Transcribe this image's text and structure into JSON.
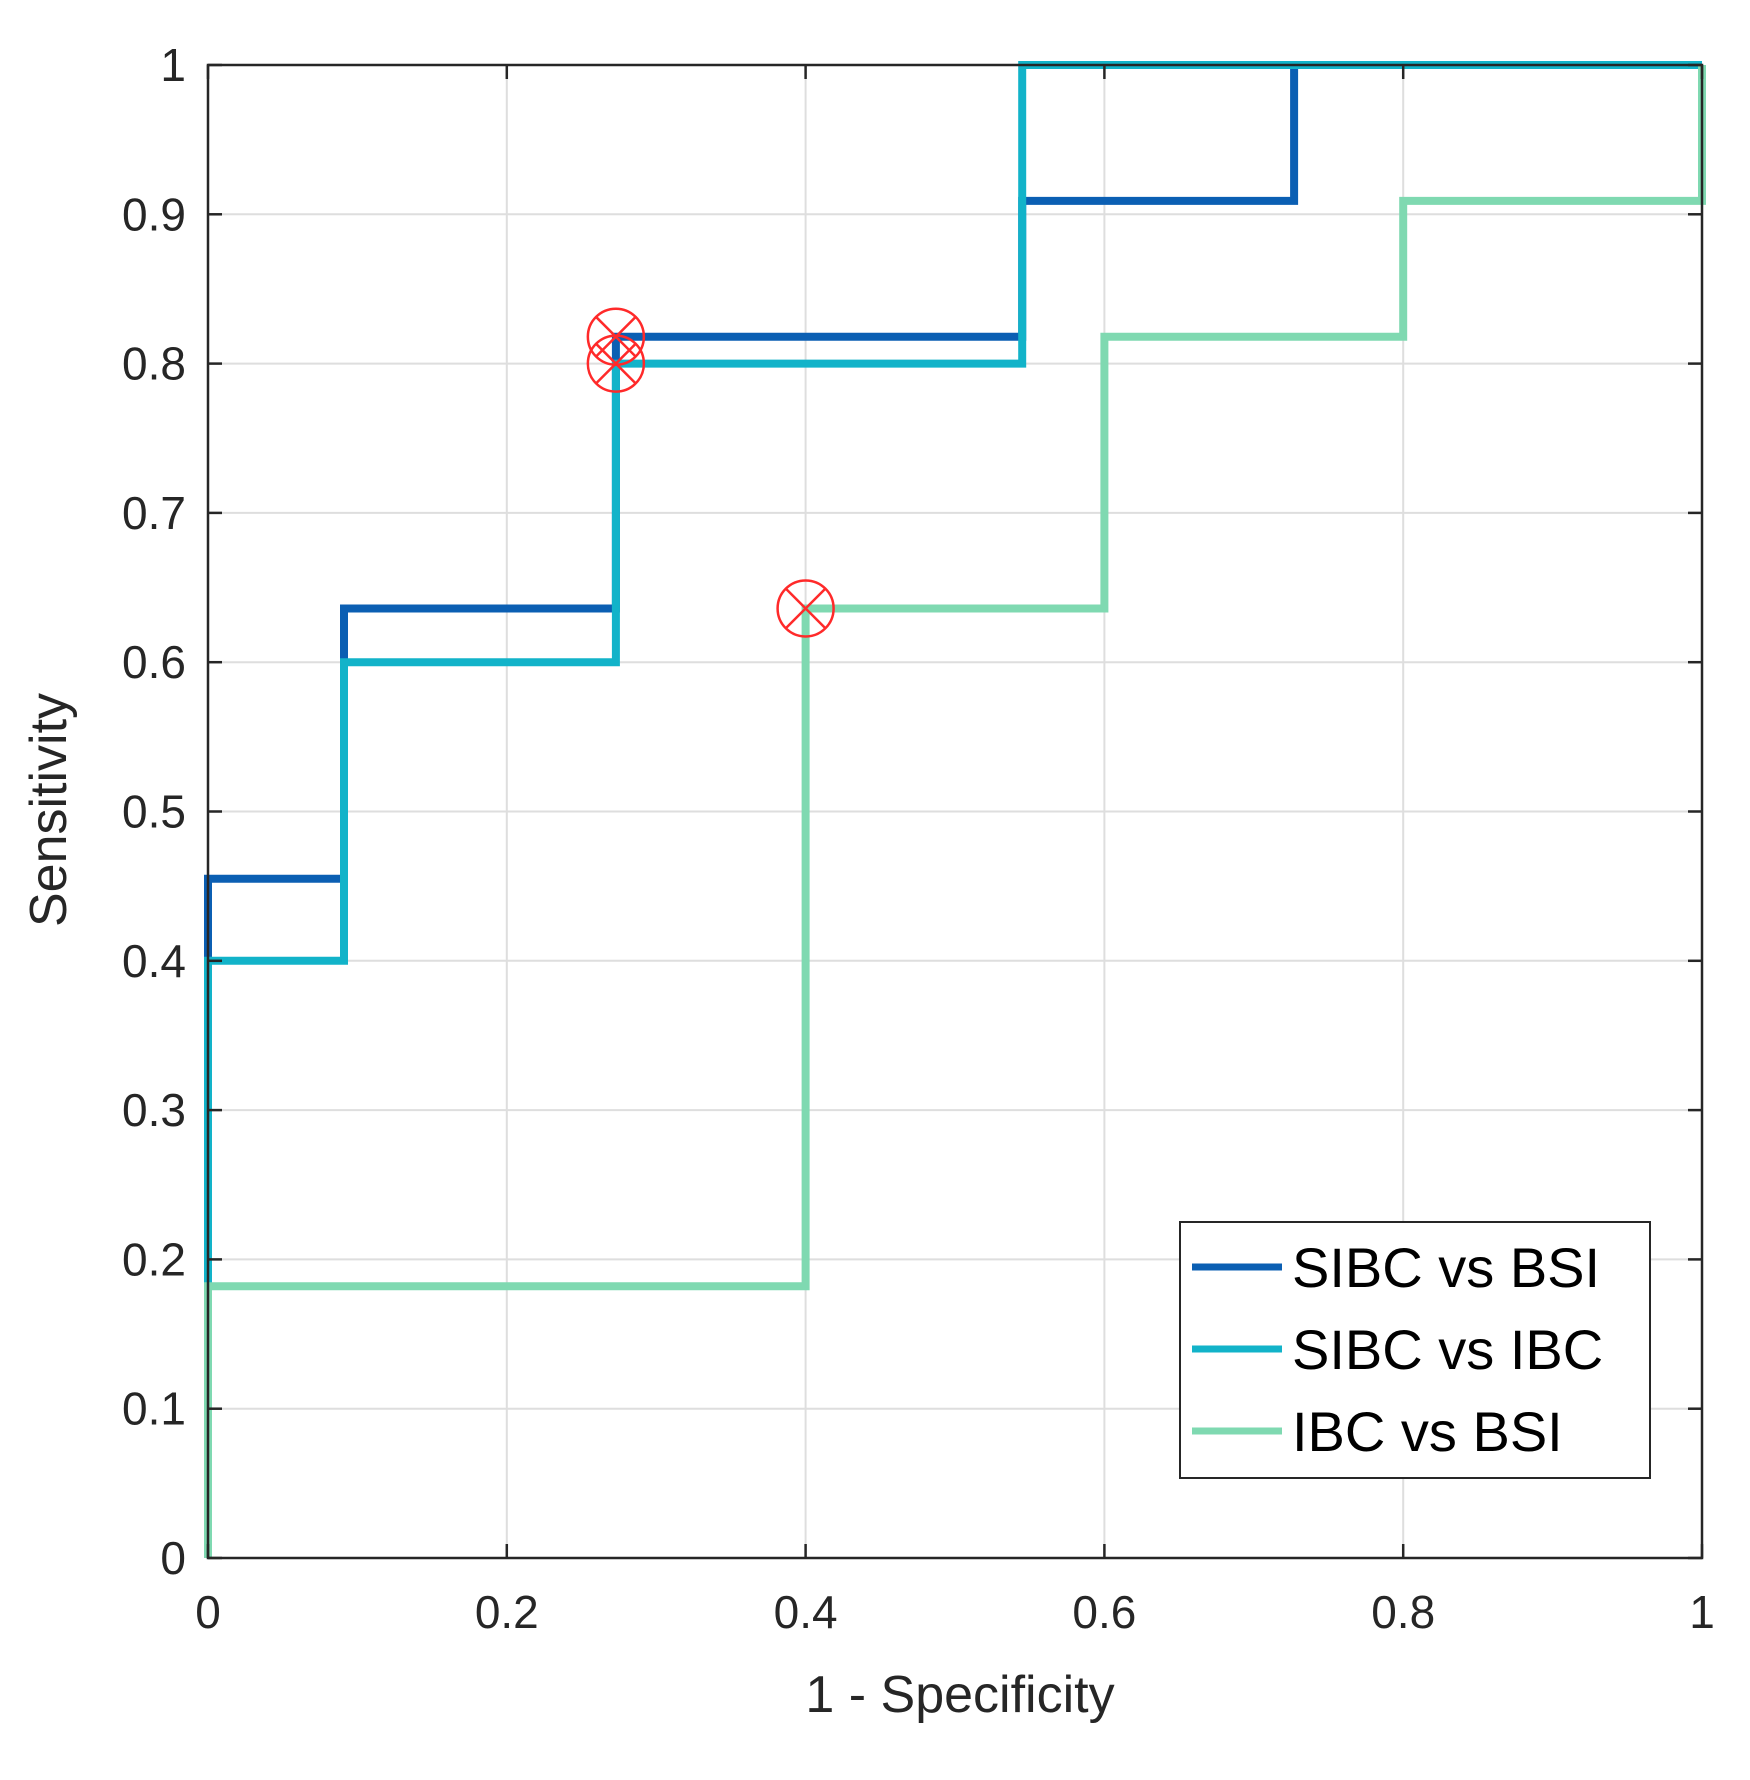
{
  "chart_data": {
    "type": "line",
    "step": true,
    "title": "",
    "xlabel": "1 - Specificity",
    "ylabel": "Sensitivity",
    "xlim": [
      0,
      1
    ],
    "ylim": [
      0,
      1
    ],
    "grid": true,
    "xticks": [
      0,
      0.2,
      0.4,
      0.6,
      0.8,
      1
    ],
    "xtick_labels": [
      "0",
      "0.2",
      "0.4",
      "0.6",
      "0.8",
      "1"
    ],
    "yticks": [
      0,
      0.1,
      0.2,
      0.3,
      0.4,
      0.5,
      0.6,
      0.7,
      0.8,
      0.9,
      1
    ],
    "ytick_labels": [
      "0",
      "0.1",
      "0.2",
      "0.3",
      "0.4",
      "0.5",
      "0.6",
      "0.7",
      "0.8",
      "0.9",
      "1"
    ],
    "legend_position": "bottom-right",
    "series": [
      {
        "name": "SIBC vs BSI",
        "color": "#0b5fb3",
        "x": [
          0,
          0,
          0,
          0.091,
          0.091,
          0.273,
          0.273,
          0.545,
          0.545,
          0.727,
          0.727,
          1
        ],
        "y": [
          0,
          0.182,
          0.455,
          0.455,
          0.636,
          0.636,
          0.818,
          0.818,
          0.909,
          0.909,
          1,
          1
        ],
        "optimal_point": {
          "x": 0.273,
          "y": 0.818
        }
      },
      {
        "name": "SIBC vs IBC",
        "color": "#12b3c9",
        "x": [
          0,
          0,
          0.091,
          0.091,
          0.273,
          0.273,
          0.545,
          0.545,
          1
        ],
        "y": [
          0.182,
          0.4,
          0.4,
          0.6,
          0.6,
          0.8,
          0.8,
          1,
          1
        ],
        "optimal_point": {
          "x": 0.273,
          "y": 0.8
        }
      },
      {
        "name": "IBC vs BSI",
        "color": "#7fd9b1",
        "x": [
          0,
          0,
          0.4,
          0.4,
          0.6,
          0.6,
          0.8,
          0.8,
          1,
          1
        ],
        "y": [
          0,
          0.182,
          0.182,
          0.636,
          0.636,
          0.818,
          0.818,
          0.909,
          0.909,
          1
        ],
        "optimal_point": {
          "x": 0.4,
          "y": 0.636
        }
      }
    ],
    "marker_color": "#ff2a2a"
  }
}
